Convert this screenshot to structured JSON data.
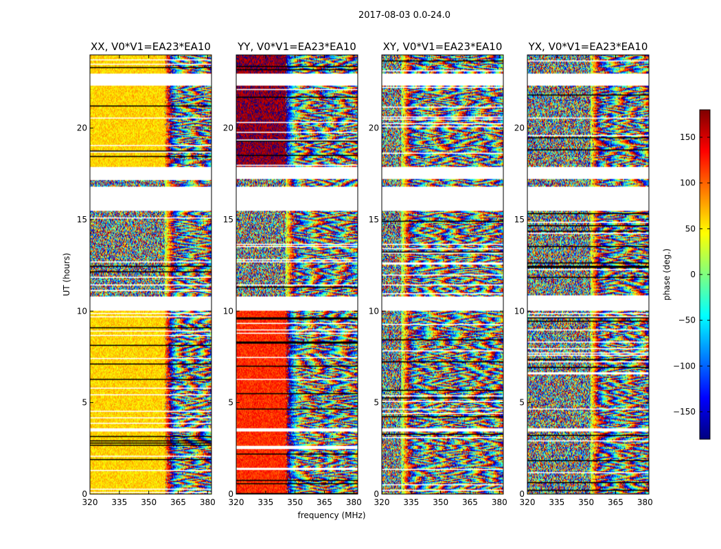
{
  "chart_data": {
    "type": "heatmap",
    "title": "2017-08-03 0.0-24.0",
    "xlabel": "frequency (MHz)",
    "ylabel": "UT (hours)",
    "xlim": [
      320,
      382
    ],
    "ylim": [
      0,
      24
    ],
    "x_ticks": [
      320,
      335,
      350,
      365,
      380
    ],
    "y_ticks": [
      0,
      5,
      10,
      15,
      20
    ],
    "colorbar": {
      "label": "phase (deg.)",
      "range": [
        -180,
        180
      ],
      "ticks": [
        150,
        100,
        50,
        0,
        -50,
        -100,
        -150
      ],
      "colormap": [
        "#00007f",
        "#0000ff",
        "#007fff",
        "#00ffff",
        "#7fff7f",
        "#ffff00",
        "#ff7f00",
        "#ff0000",
        "#7f0000"
      ]
    },
    "flagged_ut_ranges": [
      [
        22.3,
        23.0
      ],
      [
        17.2,
        17.9
      ],
      [
        15.5,
        16.8
      ],
      [
        10.0,
        10.8
      ],
      [
        3.4,
        3.6
      ]
    ],
    "panels": [
      {
        "title": "XX, V0*V1=EA23*EA10",
        "dominant_phase_hi_ut": 60,
        "dominant_phase_lo_ut": 60,
        "fringe_start_mhz": 358
      },
      {
        "title": "YY, V0*V1=EA23*EA10",
        "dominant_phase_hi_ut": 170,
        "dominant_phase_lo_ut": 120,
        "fringe_start_mhz": 345
      },
      {
        "title": "XY, V0*V1=EA23*EA10",
        "dominant_phase_hi_ut": null,
        "dominant_phase_lo_ut": null,
        "fringe_start_mhz": 330
      },
      {
        "title": "YX, V0*V1=EA23*EA10",
        "dominant_phase_hi_ut": null,
        "dominant_phase_lo_ut": null,
        "fringe_start_mhz": 352
      }
    ]
  }
}
